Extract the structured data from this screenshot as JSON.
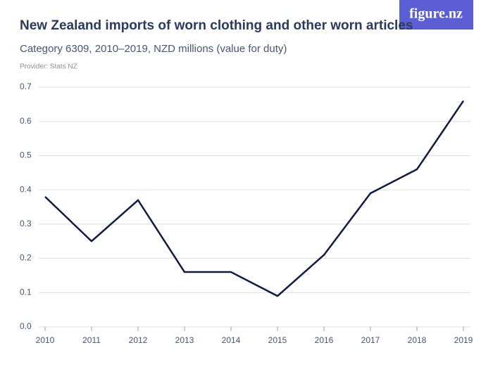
{
  "chart_data": {
    "type": "line",
    "title": "New Zealand imports of worn clothing and other worn articles",
    "subtitle": "Category 6309, 2010–2019, NZD millions (value for duty)",
    "provider": "Provider: Stats NZ",
    "logo": "figure.nz",
    "x": [
      2010,
      2011,
      2012,
      2013,
      2014,
      2015,
      2016,
      2017,
      2018,
      2019
    ],
    "series": [
      {
        "color": "#0f1a40",
        "values": [
          0.38,
          0.25,
          0.37,
          0.16,
          0.16,
          0.09,
          0.21,
          0.39,
          0.46,
          0.66
        ]
      }
    ],
    "xlim": [
      2010,
      2019
    ],
    "xticks": [
      2010,
      2011,
      2012,
      2013,
      2014,
      2015,
      2016,
      2017,
      2018,
      2019
    ],
    "ylim": [
      0,
      0.7
    ],
    "yticks": [
      {
        "value": 0,
        "label": "0.0"
      },
      0.1,
      0.2,
      0.3,
      0.4,
      0.5,
      0.6,
      0.7
    ],
    "grid": true
  }
}
